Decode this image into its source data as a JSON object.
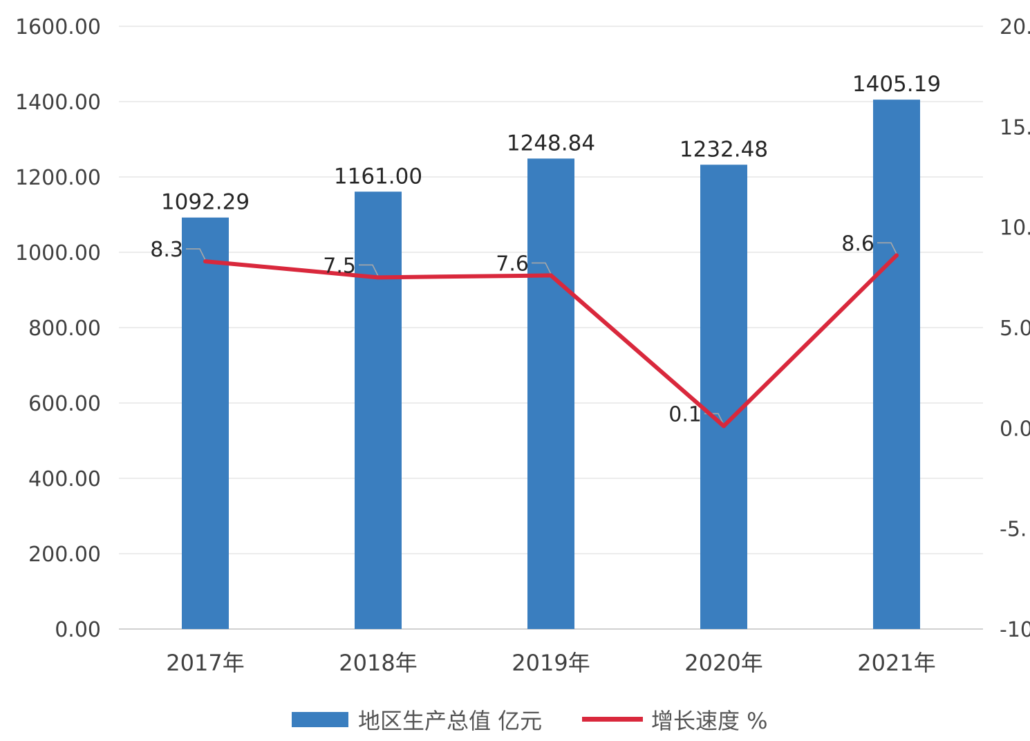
{
  "chart_data": {
    "type": "bar",
    "categories": [
      "2017年",
      "2018年",
      "2019年",
      "2020年",
      "2021年"
    ],
    "series": [
      {
        "name": "地区生产总值 亿元",
        "type": "bar",
        "axis": "left",
        "values": [
          1092.29,
          1161.0,
          1248.84,
          1232.48,
          1405.19
        ],
        "labels": [
          "1092.29",
          "1161.00",
          "1248.84",
          "1232.48",
          "1405.19"
        ],
        "color": "#3a7ebf"
      },
      {
        "name": "增长速度 %",
        "type": "line",
        "axis": "right",
        "values": [
          8.3,
          7.5,
          7.6,
          0.1,
          8.6
        ],
        "labels": [
          "8.3",
          "7.5",
          "7.6",
          "0.1",
          "8.6"
        ],
        "color": "#d9283c"
      }
    ],
    "y_left": {
      "ylim": [
        0,
        1600
      ],
      "ticks": [
        "0.00",
        "200.00",
        "400.00",
        "600.00",
        "800.00",
        "1000.00",
        "1200.00",
        "1400.00",
        "1600.00"
      ]
    },
    "y_right": {
      "ylim": [
        -10,
        20
      ],
      "ticks": [
        "-10",
        "-5.",
        "0.0",
        "5.0",
        "10.",
        "15.",
        "20."
      ]
    },
    "grid": true,
    "legend": "bottom-center"
  }
}
